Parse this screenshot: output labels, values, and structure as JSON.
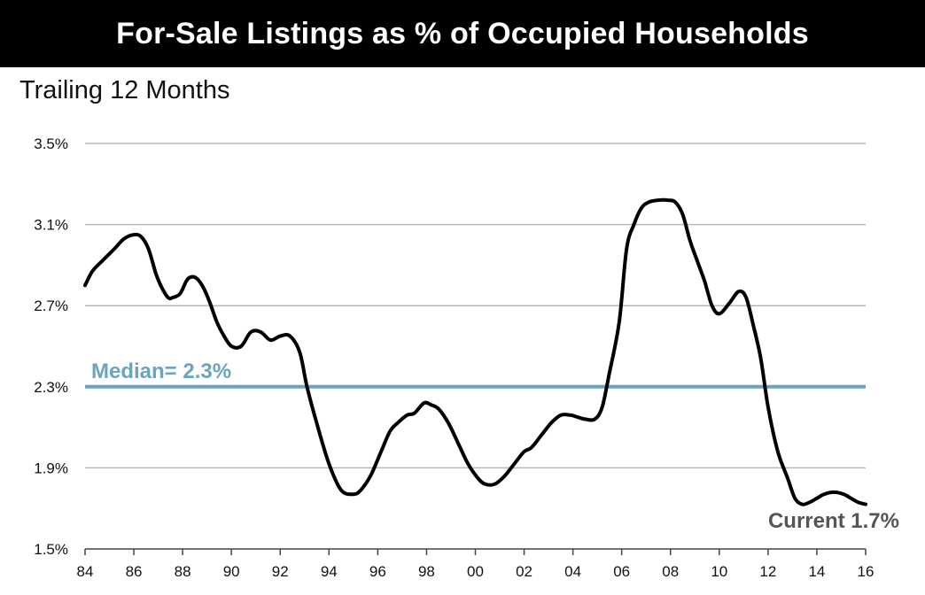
{
  "chart_data": {
    "type": "line",
    "title": "For-Sale Listings as % of Occupied Households",
    "subtitle": "Trailing 12 Months",
    "xlabel": "",
    "ylabel": "",
    "xlim": [
      1984,
      2016
    ],
    "ylim": [
      1.5,
      3.5
    ],
    "x_ticks": [
      1984,
      1986,
      1988,
      1990,
      1992,
      1994,
      1996,
      1998,
      2000,
      2002,
      2004,
      2006,
      2008,
      2010,
      2012,
      2014,
      2016
    ],
    "x_tick_labels": [
      "84",
      "86",
      "88",
      "90",
      "92",
      "94",
      "96",
      "98",
      "00",
      "02",
      "04",
      "06",
      "08",
      "10",
      "12",
      "14",
      "16"
    ],
    "y_ticks": [
      1.5,
      1.9,
      2.3,
      2.7,
      3.1,
      3.5
    ],
    "y_tick_labels": [
      "1.5%",
      "1.9%",
      "2.3%",
      "2.7%",
      "3.1%",
      "3.5%"
    ],
    "grid": true,
    "series": [
      {
        "color": "#000000",
        "x": [
          1984.0,
          1984.3,
          1984.7,
          1985.2,
          1985.6,
          1986.0,
          1986.3,
          1986.6,
          1986.9,
          1987.1,
          1987.4,
          1987.6,
          1987.9,
          1988.2,
          1988.5,
          1988.8,
          1989.1,
          1989.4,
          1989.7,
          1990.0,
          1990.4,
          1990.8,
          1991.2,
          1991.6,
          1992.0,
          1992.4,
          1992.8,
          1993.1,
          1993.5,
          1994.0,
          1994.5,
          1995.0,
          1995.3,
          1995.7,
          1996.1,
          1996.5,
          1996.8,
          1997.2,
          1997.5,
          1997.9,
          1998.2,
          1998.5,
          1998.9,
          1999.3,
          1999.7,
          2000.1,
          2000.4,
          2000.8,
          2001.2,
          2001.6,
          2002.0,
          2002.3,
          2002.7,
          2003.1,
          2003.5,
          2003.9,
          2004.2,
          2004.5,
          2004.9,
          2005.2,
          2005.5,
          2005.9,
          2006.2,
          2006.5,
          2006.8,
          2007.1,
          2007.5,
          2007.9,
          2008.2,
          2008.5,
          2008.8,
          2009.1,
          2009.4,
          2009.7,
          2010.0,
          2010.4,
          2010.8,
          2011.1,
          2011.4,
          2011.7,
          2012.0,
          2012.4,
          2012.8,
          2013.1,
          2013.4,
          2013.7,
          2014.0,
          2014.3,
          2014.7,
          2015.1,
          2015.4,
          2015.7,
          2016.0
        ],
        "values": [
          2.8,
          2.87,
          2.92,
          2.98,
          3.03,
          3.05,
          3.04,
          2.98,
          2.86,
          2.8,
          2.74,
          2.74,
          2.76,
          2.83,
          2.84,
          2.8,
          2.72,
          2.62,
          2.55,
          2.5,
          2.5,
          2.57,
          2.57,
          2.53,
          2.55,
          2.55,
          2.47,
          2.3,
          2.12,
          1.92,
          1.79,
          1.77,
          1.79,
          1.86,
          1.97,
          2.08,
          2.12,
          2.16,
          2.17,
          2.22,
          2.21,
          2.19,
          2.12,
          2.02,
          1.92,
          1.85,
          1.82,
          1.82,
          1.86,
          1.92,
          1.98,
          2.0,
          2.06,
          2.12,
          2.16,
          2.16,
          2.15,
          2.14,
          2.14,
          2.2,
          2.37,
          2.62,
          2.98,
          3.1,
          3.18,
          3.21,
          3.22,
          3.22,
          3.21,
          3.15,
          3.02,
          2.92,
          2.82,
          2.7,
          2.66,
          2.71,
          2.77,
          2.74,
          2.6,
          2.44,
          2.2,
          1.98,
          1.85,
          1.75,
          1.72,
          1.73,
          1.75,
          1.77,
          1.78,
          1.77,
          1.75,
          1.73,
          1.72
        ]
      }
    ],
    "median": {
      "value": 2.3,
      "label": "Median= 2.3%",
      "color": "#6aa5bd"
    },
    "current": {
      "label": "Current 1.7%",
      "color": "#555555"
    }
  }
}
